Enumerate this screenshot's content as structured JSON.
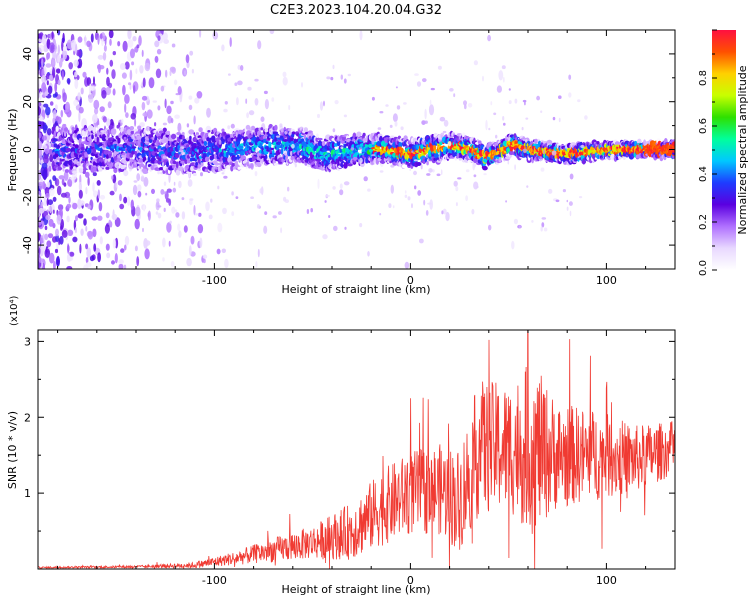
{
  "title": "C2E3.2023.104.20.04.G32",
  "chart_data": [
    {
      "type": "heatmap",
      "xlabel": "Height of straight line (km)",
      "ylabel": "Frequency (Hz)",
      "xlim": [
        -190,
        135
      ],
      "ylim": [
        -50,
        50
      ],
      "x_ticks": [
        -100,
        0,
        100
      ],
      "y_ticks": [
        -40,
        -20,
        0,
        20,
        40
      ],
      "colorbar": {
        "label": "Normalized spectral amplitude",
        "range": [
          0.0,
          1.0
        ],
        "ticks": [
          0.0,
          0.2,
          0.4,
          0.6,
          0.8
        ],
        "tick_labels": [
          "0.0",
          "0.2",
          "0.4",
          "0.6",
          "0.8"
        ],
        "colormap": [
          "#ffffff",
          "#e8d8ff",
          "#b070ff",
          "#5a00e0",
          "#1e3cff",
          "#00c8ff",
          "#00ff9c",
          "#2ee000",
          "#c8ff00",
          "#ffd000",
          "#ff5000",
          "#ff1040"
        ]
      },
      "ridge": [
        {
          "x": -170,
          "y": 0
        },
        {
          "x": -150,
          "y": 0.5
        },
        {
          "x": -130,
          "y": -0.5
        },
        {
          "x": -110,
          "y": -1.5
        },
        {
          "x": -95,
          "y": -0.5
        },
        {
          "x": -80,
          "y": 1
        },
        {
          "x": -65,
          "y": 1.5
        },
        {
          "x": -55,
          "y": 2
        },
        {
          "x": -45,
          "y": -2
        },
        {
          "x": -35,
          "y": -1
        },
        {
          "x": -25,
          "y": 0
        },
        {
          "x": -15,
          "y": 0
        },
        {
          "x": -5,
          "y": -1
        },
        {
          "x": 0,
          "y": -2
        },
        {
          "x": 10,
          "y": 0
        },
        {
          "x": 20,
          "y": 1.5
        },
        {
          "x": 30,
          "y": 0.5
        },
        {
          "x": 38,
          "y": -3
        },
        {
          "x": 45,
          "y": -1
        },
        {
          "x": 52,
          "y": 2
        },
        {
          "x": 60,
          "y": 0
        },
        {
          "x": 70,
          "y": -1
        },
        {
          "x": 80,
          "y": -2
        },
        {
          "x": 90,
          "y": -1
        },
        {
          "x": 100,
          "y": -0.5
        },
        {
          "x": 110,
          "y": 0
        },
        {
          "x": 120,
          "y": 0
        },
        {
          "x": 133,
          "y": 0
        }
      ]
    },
    {
      "type": "line",
      "xlabel": "Height of straight line (km)",
      "ylabel": "SNR (10 * v/v)",
      "scale_label": "(x10⁴)",
      "xlim": [
        -190,
        135
      ],
      "ylim": [
        0,
        3.15
      ],
      "x_ticks": [
        -100,
        0,
        100
      ],
      "y_ticks": [
        1,
        2,
        3
      ],
      "color": "#f03a32",
      "envelope": [
        {
          "x": -190,
          "mean": 0.02,
          "amp": 0.01
        },
        {
          "x": -140,
          "mean": 0.03,
          "amp": 0.015
        },
        {
          "x": -110,
          "mean": 0.05,
          "amp": 0.04
        },
        {
          "x": -90,
          "mean": 0.14,
          "amp": 0.09
        },
        {
          "x": -70,
          "mean": 0.25,
          "amp": 0.16
        },
        {
          "x": -50,
          "mean": 0.35,
          "amp": 0.22
        },
        {
          "x": -30,
          "mean": 0.5,
          "amp": 0.38
        },
        {
          "x": -15,
          "mean": 0.8,
          "amp": 0.5
        },
        {
          "x": 0,
          "mean": 1.0,
          "amp": 0.55
        },
        {
          "x": 15,
          "mean": 1.05,
          "amp": 0.6
        },
        {
          "x": 25,
          "mean": 0.9,
          "amp": 0.7
        },
        {
          "x": 35,
          "mean": 1.6,
          "amp": 0.9
        },
        {
          "x": 50,
          "mean": 1.6,
          "amp": 0.85
        },
        {
          "x": 62,
          "mean": 1.6,
          "amp": 1.15
        },
        {
          "x": 75,
          "mean": 1.5,
          "amp": 0.7
        },
        {
          "x": 95,
          "mean": 1.5,
          "amp": 0.6
        },
        {
          "x": 115,
          "mean": 1.45,
          "amp": 0.45
        },
        {
          "x": 135,
          "mean": 1.6,
          "amp": 0.35
        }
      ]
    }
  ]
}
